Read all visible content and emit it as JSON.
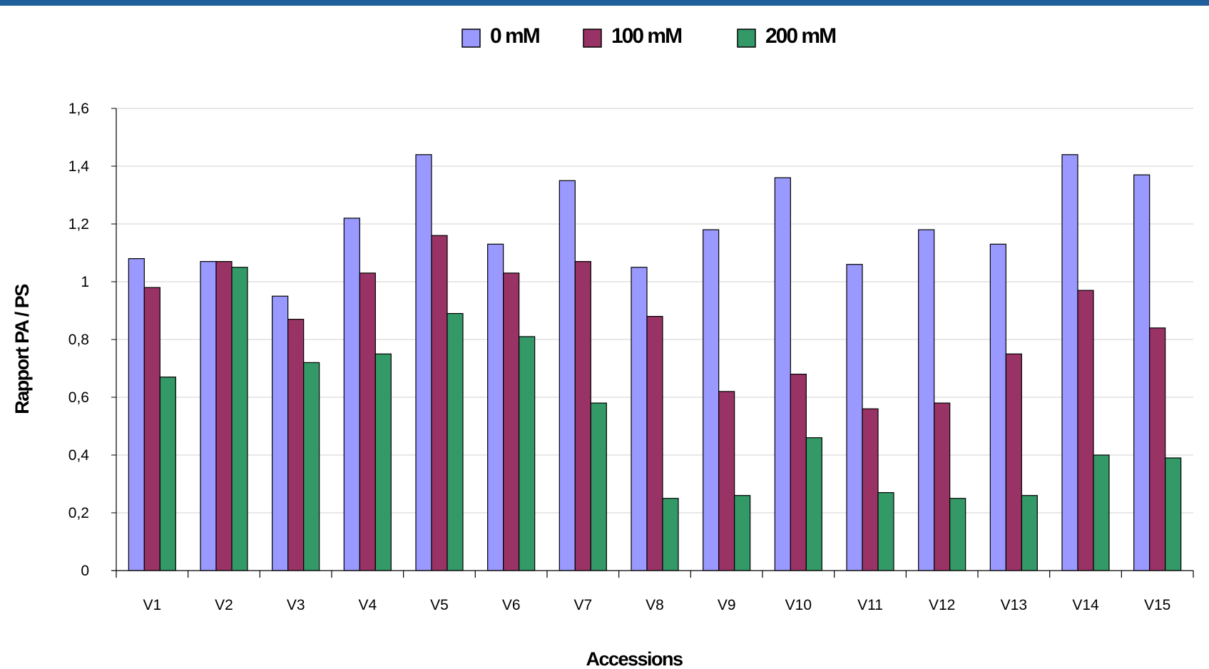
{
  "chart_data": {
    "type": "bar",
    "title": "",
    "xlabel": "Accessions",
    "ylabel": "Rapport PA / PS",
    "ylim": [
      0,
      1.6
    ],
    "yticks": [
      "0",
      "0,2",
      "0,4",
      "0,6",
      "0,8",
      "1",
      "1,2",
      "1,4",
      "1,6"
    ],
    "grid": true,
    "legend_position": "top-center",
    "categories": [
      "V1",
      "V2",
      "V3",
      "V4",
      "V5",
      "V6",
      "V7",
      "V8",
      "V9",
      "V10",
      "V11",
      "V12",
      "V13",
      "V14",
      "V15"
    ],
    "series": [
      {
        "name": "0 mM",
        "color": "#9999ff",
        "values": [
          1.08,
          1.07,
          0.95,
          1.22,
          1.44,
          1.13,
          1.35,
          1.05,
          1.18,
          1.36,
          1.06,
          1.18,
          1.13,
          1.44,
          1.37
        ]
      },
      {
        "name": "100 mM",
        "color": "#993366",
        "values": [
          0.98,
          1.07,
          0.87,
          1.03,
          1.16,
          1.03,
          1.07,
          0.88,
          0.62,
          0.68,
          0.56,
          0.58,
          0.75,
          0.97,
          0.84
        ]
      },
      {
        "name": "200 mM",
        "color": "#339966",
        "values": [
          0.67,
          1.05,
          0.72,
          0.75,
          0.89,
          0.81,
          0.58,
          0.25,
          0.26,
          0.46,
          0.27,
          0.25,
          0.26,
          0.4,
          0.39
        ]
      }
    ]
  }
}
